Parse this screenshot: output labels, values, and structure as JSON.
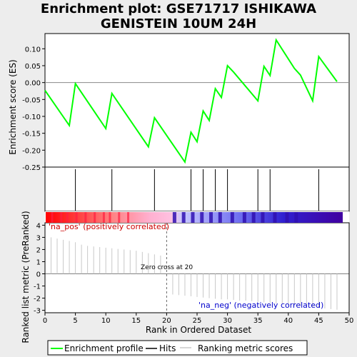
{
  "title_lines": [
    "Enrichment plot: GSE71717 ISHIKAWA",
    "GENISTEIN 10UM 24H"
  ],
  "chart_data": {
    "type": "line",
    "title": "Enrichment plot: GSE71717 ISHIKAWA GENISTEIN 10UM 24H",
    "es_panel": {
      "ylabel": "Enrichment score (ES)",
      "ylim": [
        -0.25,
        0.145
      ],
      "yticks": [
        0.1,
        0.05,
        0.0,
        -0.05,
        -0.1,
        -0.15,
        -0.2,
        -0.25
      ],
      "ytick_labels": [
        "0.10",
        "0.05",
        "0.00",
        "-0.05",
        "-0.10",
        "-0.15",
        "-0.20",
        "-0.25"
      ],
      "series": {
        "name": "Enrichment profile",
        "color": "#00ff00",
        "x": [
          0,
          4,
          5,
          10,
          11,
          17,
          18,
          23,
          24,
          25,
          26,
          27,
          28,
          29,
          30,
          31,
          35,
          36,
          37,
          38,
          41,
          42,
          44,
          45,
          48
        ],
        "y": [
          -0.023,
          -0.127,
          -0.003,
          -0.136,
          -0.032,
          -0.19,
          -0.104,
          -0.235,
          -0.147,
          -0.175,
          -0.084,
          -0.112,
          -0.018,
          -0.044,
          0.05,
          0.031,
          -0.054,
          0.048,
          0.021,
          0.126,
          0.042,
          0.022,
          -0.054,
          0.077,
          0.003
        ]
      }
    },
    "hits": {
      "name": "Hits",
      "positions": [
        5,
        11,
        18,
        24,
        26,
        28,
        30,
        35,
        37,
        45
      ]
    },
    "metric_panel": {
      "ylabel": "Ranked list metric (PreRanked)",
      "ylim": [
        -3.2,
        4.2
      ],
      "yticks": [
        4,
        3,
        2,
        1,
        0,
        -1,
        -2,
        -3
      ],
      "ytick_labels": [
        "4",
        "3",
        "2",
        "1",
        "0",
        "-1",
        "-2",
        "-3"
      ],
      "series": {
        "name": "Ranking metric scores",
        "color": "#c8c8c8",
        "x": [
          1,
          2,
          3,
          4,
          5,
          6,
          7,
          8,
          9,
          10,
          11,
          12,
          13,
          14,
          15,
          16,
          17,
          18,
          19,
          21,
          22,
          23,
          24,
          25,
          26,
          27,
          28,
          29,
          30,
          31,
          32,
          33,
          34,
          35,
          36,
          37,
          38,
          39,
          40,
          41,
          42,
          43,
          44,
          45,
          46,
          47,
          48
        ],
        "y": [
          3.0,
          2.9,
          2.8,
          2.7,
          2.6,
          2.4,
          2.3,
          2.25,
          2.2,
          2.15,
          2.1,
          2.05,
          2.0,
          1.95,
          1.9,
          1.8,
          1.7,
          1.6,
          1.5,
          -1.7,
          -1.75,
          -1.8,
          -1.85,
          -1.9,
          -1.95,
          -2.0,
          -2.05,
          -2.1,
          -2.1,
          -2.15,
          -2.2,
          -2.2,
          -2.25,
          -2.3,
          -2.35,
          -2.4,
          -2.45,
          -2.5,
          -2.55,
          -2.6,
          -2.65,
          -2.7,
          -2.75,
          -2.8,
          -2.85,
          -2.9,
          -2.95
        ]
      },
      "zero_cross": 20,
      "zero_cross_label": "Zero cross at 20",
      "pos_label": "'na_pos' (positively correlated)",
      "neg_label": "'na_neg' (negatively correlated)"
    },
    "xlabel": "Rank in Ordered Dataset",
    "xlim": [
      0,
      50
    ],
    "xticks": [
      0,
      5,
      10,
      15,
      20,
      25,
      30,
      35,
      40,
      45,
      50
    ],
    "xtick_labels": [
      "0",
      "5",
      "10",
      "15",
      "20",
      "25",
      "30",
      "35",
      "40",
      "45",
      "50"
    ],
    "legend": {
      "position": "bottom",
      "items": [
        {
          "label": "Enrichment profile",
          "color": "#00ff00"
        },
        {
          "label": "Hits",
          "color": "#000000"
        },
        {
          "label": "Ranking metric scores",
          "color": "#c8c8c8"
        }
      ]
    },
    "colors": {
      "pos_label": "#cc0000",
      "neg_label": "#0000cc",
      "background": "#ededed"
    }
  }
}
